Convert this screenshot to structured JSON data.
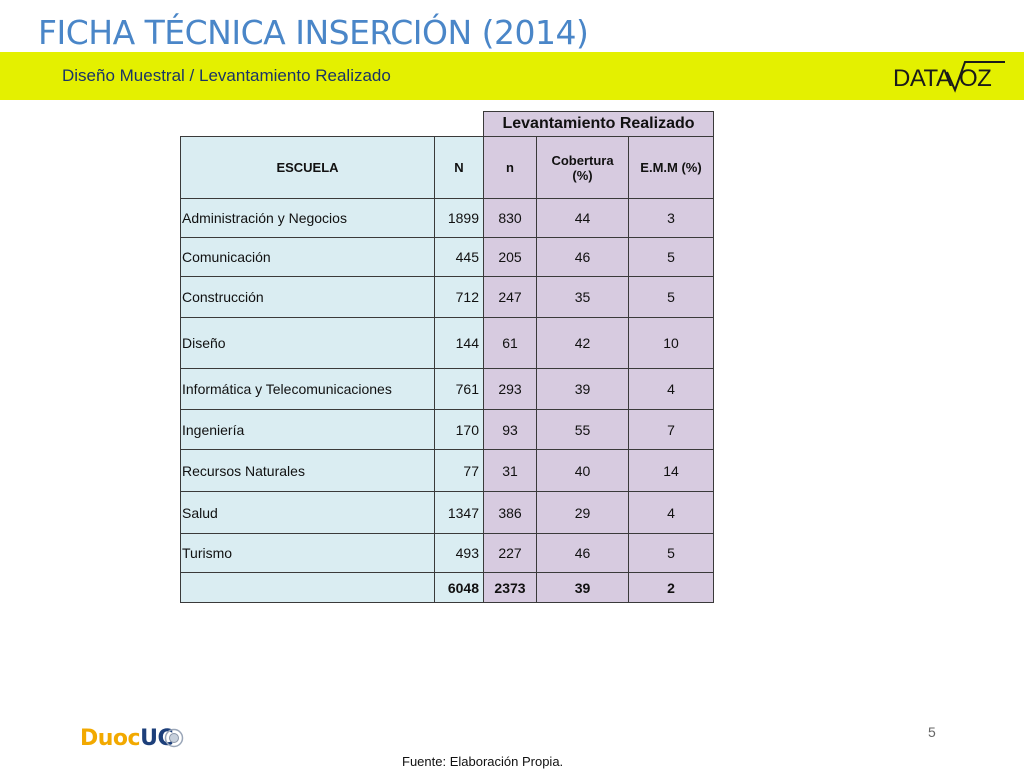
{
  "header": {
    "title": "FICHA TÉCNICA INSERCIÓN (2014)",
    "subtitle": "Diseño Muestral / Levantamiento Realizado",
    "brand_logo_text": "DATAVOZ"
  },
  "table": {
    "group_header": "Levantamiento Realizado",
    "columns": {
      "escuela": "ESCUELA",
      "N": "N",
      "n": "n",
      "cobertura": "Cobertura (%)",
      "emm": "E.M.M (%)"
    },
    "rows": [
      {
        "escuela": "Administración y Negocios",
        "N": "1899",
        "n": "830",
        "cobertura": "44",
        "emm": "3"
      },
      {
        "escuela": "Comunicación",
        "N": "445",
        "n": "205",
        "cobertura": "46",
        "emm": "5"
      },
      {
        "escuela": "Construcción",
        "N": "712",
        "n": "247",
        "cobertura": "35",
        "emm": "5"
      },
      {
        "escuela": "Diseño",
        "N": "144",
        "n": "61",
        "cobertura": "42",
        "emm": "10"
      },
      {
        "escuela": "Informática y Telecomunicaciones",
        "N": "761",
        "n": "293",
        "cobertura": "39",
        "emm": "4"
      },
      {
        "escuela": "Ingeniería",
        "N": "170",
        "n": "93",
        "cobertura": "55",
        "emm": "7"
      },
      {
        "escuela": "Recursos Naturales",
        "N": "77",
        "n": "31",
        "cobertura": "40",
        "emm": "14"
      },
      {
        "escuela": "Salud",
        "N": "1347",
        "n": "386",
        "cobertura": "29",
        "emm": "4"
      },
      {
        "escuela": "Turismo",
        "N": "493",
        "n": "227",
        "cobertura": "46",
        "emm": "5"
      }
    ],
    "total": {
      "escuela": "",
      "N": "6048",
      "n": "2373",
      "cobertura": "39",
      "emm": "2"
    }
  },
  "footer": {
    "page_number": "5",
    "source": "Fuente: Elaboración Propia.",
    "logo_left": "Duoc",
    "logo_right": "UC"
  },
  "colors": {
    "title": "#4a86c8",
    "band": "#e4f000",
    "header_blue": "#daedf2",
    "header_lavender": "#d7cbe0"
  }
}
